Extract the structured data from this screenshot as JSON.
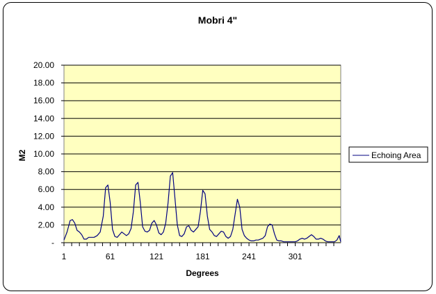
{
  "chart_data": {
    "type": "line",
    "title": "Mobri 4\"",
    "xlabel": "Degrees",
    "ylabel": "M2",
    "xlim": [
      1,
      360
    ],
    "ylim": [
      0,
      20
    ],
    "yticks": [
      0,
      2,
      4,
      6,
      8,
      10,
      12,
      14,
      16,
      18,
      20
    ],
    "ytick_labels": [
      "-",
      "2.00",
      "4.00",
      "6.00",
      "8.00",
      "10.00",
      "12.00",
      "14.00",
      "16.00",
      "18.00",
      "20.00"
    ],
    "xtick_labels": [
      "1",
      "61",
      "121",
      "181",
      "241",
      "301"
    ],
    "xtick_values": [
      1,
      61,
      121,
      181,
      241,
      301
    ],
    "grid": true,
    "legend": "right",
    "colors": {
      "plot_bg": "#ffffc0",
      "line": "#000080",
      "grid": "#000000"
    },
    "series": [
      {
        "name": "Echoing Area",
        "x": [
          1,
          5,
          9,
          12,
          15,
          18,
          21,
          24,
          27,
          30,
          33,
          36,
          40,
          44,
          48,
          52,
          55,
          58,
          61,
          64,
          67,
          70,
          73,
          76,
          79,
          82,
          85,
          88,
          91,
          94,
          97,
          100,
          103,
          106,
          109,
          112,
          115,
          118,
          121,
          124,
          127,
          130,
          133,
          136,
          139,
          142,
          145,
          148,
          151,
          154,
          157,
          160,
          163,
          166,
          169,
          172,
          175,
          178,
          181,
          184,
          187,
          190,
          193,
          196,
          199,
          202,
          205,
          208,
          211,
          214,
          217,
          220,
          223,
          226,
          229,
          232,
          235,
          238,
          241,
          244,
          247,
          250,
          253,
          256,
          259,
          262,
          265,
          268,
          271,
          274,
          277,
          280,
          283,
          286,
          289,
          292,
          295,
          298,
          301,
          304,
          307,
          310,
          313,
          316,
          319,
          322,
          325,
          328,
          331,
          334,
          337,
          340,
          343,
          346,
          349,
          352,
          355,
          358,
          360
        ],
        "values": [
          0.3,
          1.2,
          2.5,
          2.6,
          2.2,
          1.4,
          1.2,
          0.9,
          0.4,
          0.4,
          0.6,
          0.6,
          0.6,
          0.8,
          1.2,
          3.0,
          6.2,
          6.5,
          4.5,
          1.5,
          0.7,
          0.6,
          0.9,
          1.2,
          1.0,
          0.8,
          1.0,
          1.6,
          3.5,
          6.5,
          6.8,
          4.5,
          1.8,
          1.3,
          1.2,
          1.4,
          2.2,
          2.5,
          2.0,
          1.1,
          0.9,
          1.2,
          2.2,
          4.5,
          7.5,
          7.9,
          5.0,
          2.0,
          0.8,
          0.7,
          1.0,
          1.8,
          1.9,
          1.4,
          1.2,
          1.5,
          1.8,
          3.5,
          5.9,
          5.5,
          3.0,
          1.5,
          1.2,
          0.8,
          0.7,
          1.0,
          1.3,
          1.2,
          0.7,
          0.5,
          0.7,
          1.5,
          3.2,
          4.9,
          4.0,
          1.5,
          0.8,
          0.5,
          0.3,
          0.2,
          0.2,
          0.3,
          0.3,
          0.4,
          0.5,
          0.8,
          1.8,
          2.1,
          2.0,
          1.0,
          0.3,
          0.2,
          0.2,
          0.1,
          0.1,
          0.1,
          0.1,
          0.1,
          0.1,
          0.2,
          0.4,
          0.5,
          0.4,
          0.5,
          0.7,
          0.9,
          0.7,
          0.4,
          0.4,
          0.5,
          0.4,
          0.2,
          0.1,
          0.1,
          0.1,
          0.1,
          0.3,
          0.8,
          0.1
        ]
      }
    ]
  }
}
